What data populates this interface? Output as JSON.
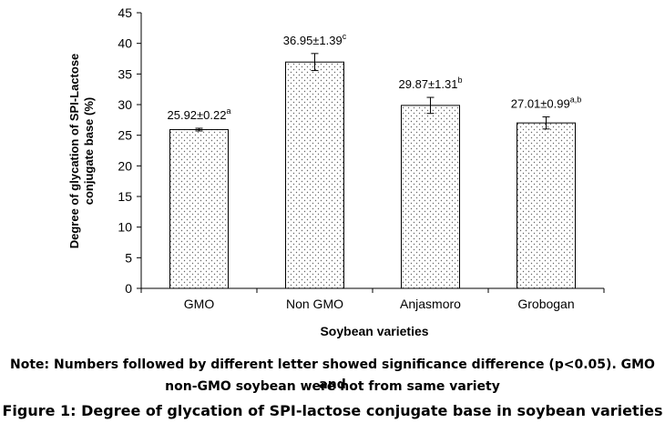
{
  "chart_data": {
    "type": "bar",
    "categories": [
      "GMO",
      "Non GMO",
      "Anjasmoro",
      "Grobogan"
    ],
    "values": [
      25.92,
      36.95,
      29.87,
      27.01
    ],
    "errors": [
      0.22,
      1.39,
      1.31,
      0.99
    ],
    "value_labels": [
      {
        "main": "25.92±0.22",
        "sup": "a"
      },
      {
        "main": "36.95±1.39",
        "sup": "c"
      },
      {
        "main": "29.87±1.31",
        "sup": "b"
      },
      {
        "main": "27.01±0.99",
        "sup": "a,b"
      }
    ],
    "ylabel_line1": "Degree of glycation of SPI-Lactose",
    "ylabel_line2": "conjugate base (%)",
    "xlabel": "Soybean varieties",
    "ylim": [
      0,
      45
    ],
    "yticks": [
      0,
      5,
      10,
      15,
      20,
      25,
      30,
      35,
      40,
      45
    ],
    "bar_fill": "dotted pattern",
    "grid": false,
    "legend": "none"
  },
  "note_line1": "Note: Numbers followed by different letter showed significance difference (p<0.05). GMO and",
  "note_line2": "non-GMO soybean were not from same variety",
  "caption": "Figure 1: Degree of glycation of SPI-lactose conjugate base in soybean varieties"
}
